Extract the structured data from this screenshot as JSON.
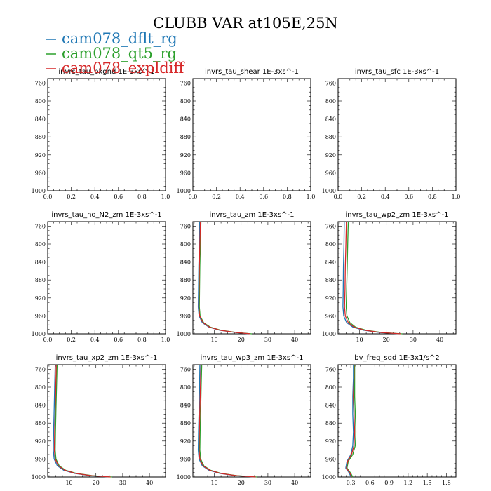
{
  "title": "CLUBB VAR at105E,25N",
  "legend": [
    {
      "name": "cam078_dflt_rg",
      "color": "#1f77b4"
    },
    {
      "name": "cam078_qt5_rg",
      "color": "#2ca02c"
    },
    {
      "name": "cam078_expldiff",
      "color": "#d62728"
    }
  ],
  "chart_data": [
    {
      "type": "line",
      "title": "invrs_tau_bkgnd   1E-3xs^-1",
      "xlim": [
        0,
        1
      ],
      "ylim": [
        1000,
        750
      ],
      "xticks": [
        "0.0",
        "0.2",
        "0.4",
        "0.6",
        "0.8",
        "1.0"
      ],
      "yticks": [
        "760",
        "800",
        "840",
        "880",
        "920",
        "960",
        "1000"
      ],
      "series": []
    },
    {
      "type": "line",
      "title": "invrs_tau_shear   1E-3xs^-1",
      "xlim": [
        0,
        1
      ],
      "ylim": [
        1000,
        750
      ],
      "xticks": [
        "0.0",
        "0.2",
        "0.4",
        "0.6",
        "0.8",
        "1.0"
      ],
      "yticks": [
        "760",
        "800",
        "840",
        "880",
        "920",
        "960",
        "1000"
      ],
      "series": []
    },
    {
      "type": "line",
      "title": "invrs_tau_sfc   1E-3xs^-1",
      "xlim": [
        0,
        1
      ],
      "ylim": [
        1000,
        750
      ],
      "xticks": [
        "0.0",
        "0.2",
        "0.4",
        "0.6",
        "0.8",
        "1.0"
      ],
      "yticks": [
        "760",
        "800",
        "840",
        "880",
        "920",
        "960",
        "1000"
      ],
      "series": []
    },
    {
      "type": "line",
      "title": "invrs_tau_no_N2_zm   1E-3xs^-1",
      "xlim": [
        0,
        1
      ],
      "ylim": [
        1000,
        750
      ],
      "xticks": [
        "0.0",
        "0.2",
        "0.4",
        "0.6",
        "0.8",
        "1.0"
      ],
      "yticks": [
        "760",
        "800",
        "840",
        "880",
        "920",
        "960",
        "1000"
      ],
      "series": []
    },
    {
      "type": "line",
      "title": "invrs_tau_zm   1E-3xs^-1",
      "xlim": [
        2,
        46
      ],
      "ylim": [
        1000,
        750
      ],
      "xticks": [
        "10",
        "20",
        "30",
        "40"
      ],
      "yticks": [
        "760",
        "800",
        "840",
        "880",
        "920",
        "960",
        "1000"
      ],
      "series": [
        {
          "color": "#1f77b4",
          "y": [
            750,
            800,
            850,
            900,
            940,
            960,
            975,
            985,
            992,
            997,
            1000
          ],
          "x": [
            4.5,
            4.4,
            4.2,
            4.1,
            4.0,
            4.3,
            5.5,
            8,
            12,
            18,
            23
          ]
        },
        {
          "color": "#2ca02c",
          "y": [
            750,
            800,
            850,
            900,
            940,
            960,
            975,
            985,
            992,
            997,
            1000
          ],
          "x": [
            5.0,
            4.8,
            4.6,
            4.5,
            4.4,
            4.7,
            6.0,
            8.5,
            12.5,
            18.5,
            24
          ]
        },
        {
          "color": "#d62728",
          "y": [
            750,
            800,
            850,
            900,
            940,
            960,
            975,
            985,
            992,
            997,
            1000
          ],
          "x": [
            4.8,
            4.6,
            4.4,
            4.3,
            4.2,
            4.5,
            5.8,
            8.2,
            12.2,
            18.2,
            23.5
          ]
        }
      ]
    },
    {
      "type": "line",
      "title": "invrs_tau_wp2_zm   1E-3xs^-1",
      "xlim": [
        2,
        46
      ],
      "ylim": [
        1000,
        750
      ],
      "xticks": [
        "10",
        "20",
        "30",
        "40"
      ],
      "yticks": [
        "760",
        "800",
        "840",
        "880",
        "920",
        "960",
        "1000"
      ],
      "series": [
        {
          "color": "#1f77b4",
          "y": [
            750,
            800,
            850,
            900,
            940,
            960,
            975,
            985,
            992,
            997,
            1000
          ],
          "x": [
            4.3,
            4.2,
            4.0,
            3.9,
            3.8,
            4.1,
            5.2,
            7.5,
            11.5,
            17.5,
            25
          ]
        },
        {
          "color": "#2ca02c",
          "y": [
            750,
            800,
            850,
            900,
            940,
            960,
            975,
            985,
            992,
            997,
            1000
          ],
          "x": [
            5.8,
            5.6,
            5.4,
            5.2,
            5.0,
            5.3,
            6.4,
            8.5,
            12.5,
            18.5,
            26
          ]
        },
        {
          "color": "#d62728",
          "y": [
            750,
            800,
            850,
            900,
            940,
            960,
            975,
            985,
            992,
            997,
            1000
          ],
          "x": [
            5.1,
            4.9,
            4.7,
            4.6,
            4.4,
            4.7,
            5.8,
            8.0,
            12.0,
            18.0,
            25.5
          ]
        }
      ]
    },
    {
      "type": "line",
      "title": "invrs_tau_xp2_zm   1E-3xs^-1",
      "xlim": [
        2,
        46
      ],
      "ylim": [
        1000,
        750
      ],
      "xticks": [
        "10",
        "20",
        "30",
        "40"
      ],
      "yticks": [
        "760",
        "800",
        "840",
        "880",
        "920",
        "960",
        "1000"
      ],
      "series": [
        {
          "color": "#1f77b4",
          "y": [
            750,
            800,
            850,
            900,
            940,
            960,
            975,
            985,
            992,
            997,
            1000
          ],
          "x": [
            4.8,
            4.6,
            4.4,
            4.2,
            4.1,
            4.4,
            5.6,
            8.0,
            12.0,
            18.0,
            25
          ]
        },
        {
          "color": "#2ca02c",
          "y": [
            750,
            800,
            850,
            900,
            940,
            960,
            975,
            985,
            992,
            997,
            1000
          ],
          "x": [
            5.5,
            5.3,
            5.1,
            4.9,
            4.8,
            5.1,
            6.3,
            8.7,
            12.7,
            18.7,
            26
          ]
        },
        {
          "color": "#d62728",
          "y": [
            750,
            800,
            850,
            900,
            940,
            960,
            975,
            985,
            992,
            997,
            1000
          ],
          "x": [
            5.2,
            5.0,
            4.8,
            4.6,
            4.5,
            4.8,
            6.0,
            8.4,
            12.4,
            18.4,
            25.5
          ]
        }
      ]
    },
    {
      "type": "line",
      "title": "invrs_tau_wp3_zm   1E-3xs^-1",
      "xlim": [
        2,
        46
      ],
      "ylim": [
        1000,
        750
      ],
      "xticks": [
        "10",
        "20",
        "30",
        "40"
      ],
      "yticks": [
        "760",
        "800",
        "840",
        "880",
        "920",
        "960",
        "1000"
      ],
      "series": [
        {
          "color": "#1f77b4",
          "y": [
            750,
            800,
            850,
            900,
            940,
            960,
            975,
            985,
            992,
            997,
            1000
          ],
          "x": [
            4.6,
            4.5,
            4.3,
            4.1,
            4.0,
            4.3,
            5.5,
            8.0,
            12.0,
            18.0,
            25
          ]
        },
        {
          "color": "#2ca02c",
          "y": [
            750,
            800,
            850,
            900,
            940,
            960,
            975,
            985,
            992,
            997,
            1000
          ],
          "x": [
            5.3,
            5.1,
            4.9,
            4.7,
            4.6,
            4.9,
            6.1,
            8.6,
            12.6,
            18.6,
            26
          ]
        },
        {
          "color": "#d62728",
          "y": [
            750,
            800,
            850,
            900,
            940,
            960,
            975,
            985,
            992,
            997,
            1000
          ],
          "x": [
            5.0,
            4.8,
            4.6,
            4.4,
            4.3,
            4.6,
            5.8,
            8.3,
            12.3,
            18.3,
            25.5
          ]
        }
      ]
    },
    {
      "type": "line",
      "title": "bv_freq_sqd   1E-3x1/s^2",
      "xlim": [
        0.1,
        1.95
      ],
      "ylim": [
        1000,
        750
      ],
      "xticks": [
        "0.3",
        "0.6",
        "0.9",
        "1.2",
        "1.5",
        "1.8"
      ],
      "yticks": [
        "760",
        "800",
        "840",
        "880",
        "920",
        "960",
        "1000"
      ],
      "series": [
        {
          "color": "#1f77b4",
          "y": [
            750,
            780,
            820,
            860,
            900,
            930,
            950,
            965,
            980,
            992,
            1000
          ],
          "x": [
            0.34,
            0.34,
            0.33,
            0.33,
            0.34,
            0.33,
            0.3,
            0.24,
            0.22,
            0.28,
            0.3
          ]
        },
        {
          "color": "#2ca02c",
          "y": [
            750,
            780,
            820,
            860,
            900,
            930,
            950,
            965,
            980,
            992,
            1000
          ],
          "x": [
            0.36,
            0.36,
            0.36,
            0.37,
            0.38,
            0.37,
            0.33,
            0.26,
            0.24,
            0.3,
            0.33
          ]
        },
        {
          "color": "#d62728",
          "y": [
            750,
            780,
            820,
            860,
            900,
            930,
            950,
            965,
            980,
            992,
            1000
          ],
          "x": [
            0.35,
            0.35,
            0.34,
            0.35,
            0.36,
            0.35,
            0.31,
            0.25,
            0.23,
            0.29,
            0.31
          ]
        }
      ]
    }
  ]
}
